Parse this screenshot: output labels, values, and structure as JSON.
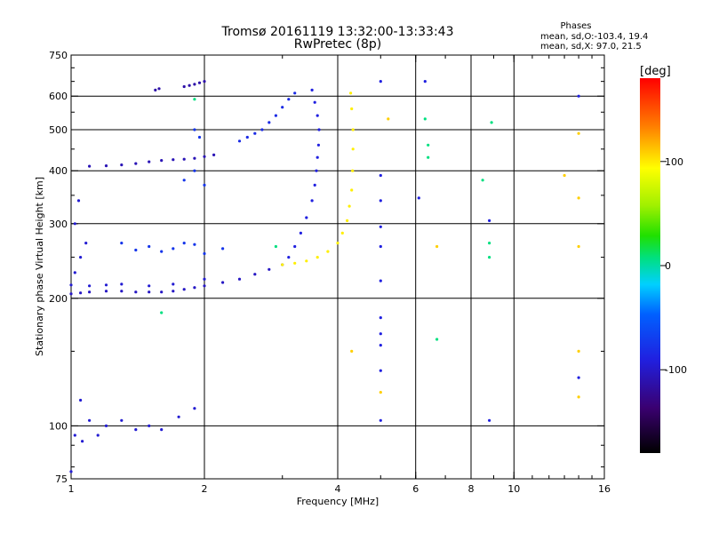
{
  "chart_data": {
    "type": "scatter",
    "title": "Tromsø 20161119 13:32:00-13:33:43",
    "subtitle": "RwPretec (8p)",
    "stats": {
      "heading": "Phases",
      "line1": "mean, sd,O:-103.4, 19.4",
      "line2": "mean, sd,X:  97.0, 21.5"
    },
    "xlabel": "Frequency [MHz]",
    "ylabel": "Stationary phase Virtual Height [km]",
    "x_scale": "log",
    "y_scale": "log",
    "xlim": [
      1,
      16
    ],
    "ylim": [
      75,
      750
    ],
    "x_ticks": [
      1,
      2,
      4,
      6,
      8,
      10,
      16
    ],
    "x_tick_labels": [
      "1",
      "2",
      "4",
      "6",
      "8",
      "10",
      "16"
    ],
    "x_gridlines": [
      2,
      4,
      6,
      8,
      10
    ],
    "y_ticks": [
      75,
      100,
      200,
      300,
      400,
      500,
      600,
      750
    ],
    "y_tick_labels": [
      "75",
      "100",
      "200",
      "300",
      "400",
      "500",
      "600",
      "750"
    ],
    "y_gridlines": [
      100,
      200,
      300,
      400,
      500,
      600
    ],
    "grid": true,
    "colorbar": {
      "label": "[deg]",
      "range": [
        -180,
        180
      ],
      "ticks": [
        100,
        0,
        -100
      ],
      "tick_labels": [
        "100",
        "0",
        "-100"
      ]
    },
    "series": [
      {
        "phase": -110,
        "points": [
          [
            1.0,
            205
          ],
          [
            1.05,
            206
          ],
          [
            1.1,
            207
          ],
          [
            1.2,
            208
          ],
          [
            1.3,
            208
          ],
          [
            1.4,
            207
          ],
          [
            1.5,
            207
          ],
          [
            1.6,
            207
          ],
          [
            1.7,
            208
          ],
          [
            1.8,
            210
          ],
          [
            1.9,
            212
          ],
          [
            2.0,
            214
          ],
          [
            2.2,
            218
          ],
          [
            2.4,
            222
          ],
          [
            2.6,
            228
          ],
          [
            2.8,
            234
          ]
        ]
      },
      {
        "phase": -105,
        "points": [
          [
            1.0,
            215
          ],
          [
            1.1,
            214
          ],
          [
            1.2,
            215
          ],
          [
            1.3,
            216
          ],
          [
            1.5,
            214
          ],
          [
            1.7,
            216
          ],
          [
            2.0,
            222
          ],
          [
            1.02,
            230
          ],
          [
            1.05,
            250
          ],
          [
            1.08,
            270
          ],
          [
            1.04,
            340
          ],
          [
            1.02,
            300
          ]
        ]
      },
      {
        "phase": -115,
        "points": [
          [
            1.1,
            410
          ],
          [
            1.2,
            411
          ],
          [
            1.3,
            413
          ],
          [
            1.4,
            416
          ],
          [
            1.5,
            420
          ],
          [
            1.6,
            423
          ],
          [
            1.7,
            425
          ],
          [
            1.8,
            426
          ],
          [
            1.9,
            428
          ],
          [
            2.0,
            432
          ],
          [
            2.1,
            436
          ]
        ]
      },
      {
        "phase": -100,
        "points": [
          [
            3.0,
            240
          ],
          [
            3.1,
            250
          ],
          [
            3.2,
            265
          ],
          [
            3.3,
            285
          ],
          [
            3.4,
            310
          ],
          [
            3.5,
            340
          ],
          [
            3.55,
            370
          ],
          [
            3.58,
            400
          ],
          [
            3.6,
            430
          ],
          [
            3.62,
            460
          ],
          [
            3.63,
            500
          ],
          [
            3.6,
            540
          ],
          [
            3.55,
            580
          ],
          [
            3.5,
            620
          ]
        ]
      },
      {
        "phase": 100,
        "points": [
          [
            3.0,
            240
          ],
          [
            3.2,
            242
          ],
          [
            3.4,
            245
          ],
          [
            3.6,
            250
          ],
          [
            3.8,
            258
          ],
          [
            4.0,
            270
          ],
          [
            4.1,
            285
          ],
          [
            4.2,
            305
          ],
          [
            4.25,
            330
          ],
          [
            4.3,
            360
          ],
          [
            4.32,
            400
          ],
          [
            4.33,
            450
          ],
          [
            4.33,
            500
          ],
          [
            4.3,
            560
          ],
          [
            4.28,
            610
          ]
        ]
      },
      {
        "phase": -90,
        "points": [
          [
            1.5,
            265
          ],
          [
            1.6,
            258
          ],
          [
            1.7,
            262
          ],
          [
            1.8,
            270
          ],
          [
            1.9,
            268
          ],
          [
            2.0,
            255
          ],
          [
            2.2,
            262
          ],
          [
            1.3,
            270
          ],
          [
            1.4,
            260
          ],
          [
            1.8,
            380
          ],
          [
            1.9,
            400
          ],
          [
            2.0,
            370
          ],
          [
            1.9,
            500
          ],
          [
            1.95,
            480
          ]
        ]
      },
      {
        "phase": -95,
        "points": [
          [
            2.4,
            470
          ],
          [
            2.5,
            480
          ],
          [
            2.6,
            490
          ],
          [
            2.7,
            500
          ],
          [
            2.8,
            520
          ],
          [
            2.9,
            540
          ],
          [
            3.0,
            565
          ],
          [
            3.1,
            590
          ],
          [
            3.2,
            610
          ]
        ]
      },
      {
        "phase": -120,
        "points": [
          [
            1.8,
            632
          ],
          [
            1.85,
            636
          ],
          [
            1.9,
            640
          ],
          [
            1.95,
            645
          ],
          [
            2.0,
            650
          ],
          [
            1.55,
            620
          ],
          [
            1.58,
            625
          ]
        ]
      },
      {
        "phase": -105,
        "points": [
          [
            1.02,
            95
          ],
          [
            1.05,
            115
          ],
          [
            1.1,
            103
          ],
          [
            1.15,
            95
          ],
          [
            1.2,
            100
          ],
          [
            1.3,
            103
          ],
          [
            1.4,
            98
          ],
          [
            1.5,
            100
          ],
          [
            1.6,
            98
          ],
          [
            1.75,
            105
          ],
          [
            1.9,
            110
          ],
          [
            1.06,
            92
          ],
          [
            1.0,
            78
          ]
        ]
      },
      {
        "phase": -100,
        "points": [
          [
            5.0,
            650
          ],
          [
            5.0,
            390
          ],
          [
            5.0,
            340
          ],
          [
            5.0,
            295
          ],
          [
            5.0,
            265
          ],
          [
            5.0,
            220
          ],
          [
            5.0,
            180
          ],
          [
            5.0,
            165
          ],
          [
            5.0,
            155
          ],
          [
            5.0,
            135
          ],
          [
            5.0,
            103
          ],
          [
            6.3,
            650
          ],
          [
            6.1,
            345
          ],
          [
            8.8,
            305
          ],
          [
            8.8,
            103
          ],
          [
            14.0,
            600
          ],
          [
            14.0,
            130
          ]
        ]
      },
      {
        "phase": 110,
        "points": [
          [
            4.3,
            150
          ],
          [
            5.0,
            120
          ],
          [
            5.2,
            530
          ],
          [
            14.0,
            345
          ],
          [
            14.0,
            490
          ],
          [
            14.0,
            265
          ],
          [
            14.0,
            150
          ],
          [
            14.0,
            117
          ],
          [
            13.0,
            390
          ],
          [
            6.7,
            265
          ]
        ]
      },
      {
        "phase": 10,
        "points": [
          [
            6.3,
            530
          ],
          [
            6.4,
            460
          ],
          [
            6.4,
            430
          ],
          [
            6.7,
            160
          ],
          [
            8.8,
            270
          ],
          [
            8.8,
            250
          ],
          [
            8.9,
            520
          ],
          [
            8.5,
            380
          ],
          [
            2.9,
            265
          ],
          [
            1.6,
            185
          ],
          [
            1.9,
            590
          ]
        ]
      }
    ]
  }
}
